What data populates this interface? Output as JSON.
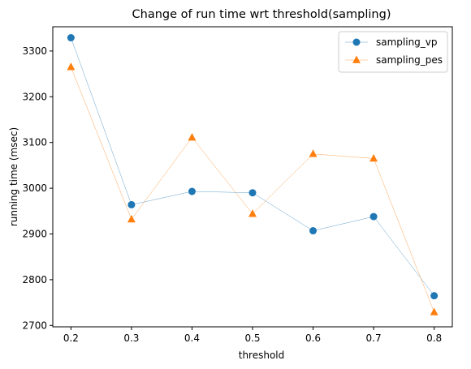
{
  "chart_data": {
    "type": "line",
    "title": "Change of run time wrt threshold(sampling)",
    "xlabel": "threshold",
    "ylabel": "running time (msec)",
    "x": [
      0.2,
      0.3,
      0.4,
      0.5,
      0.6,
      0.7,
      0.8
    ],
    "x_ticks": [
      "0.2",
      "0.3",
      "0.4",
      "0.5",
      "0.6",
      "0.7",
      "0.8"
    ],
    "y_ticks": [
      "2700",
      "2800",
      "2900",
      "3000",
      "3100",
      "3200",
      "3300"
    ],
    "xlim": [
      0.17,
      0.83
    ],
    "ylim": [
      2697,
      3353
    ],
    "grid": false,
    "legend_position": "top-right",
    "series": [
      {
        "name": "sampling_vp",
        "marker": "circle",
        "color": "#1f77b4",
        "values": [
          3329,
          2964,
          2993,
          2990,
          2907,
          2938,
          2765
        ]
      },
      {
        "name": "sampling_pes",
        "marker": "triangle",
        "color": "#ff7f0e",
        "values": [
          3265,
          2932,
          3111,
          2944,
          3075,
          3065,
          2729
        ]
      }
    ]
  }
}
